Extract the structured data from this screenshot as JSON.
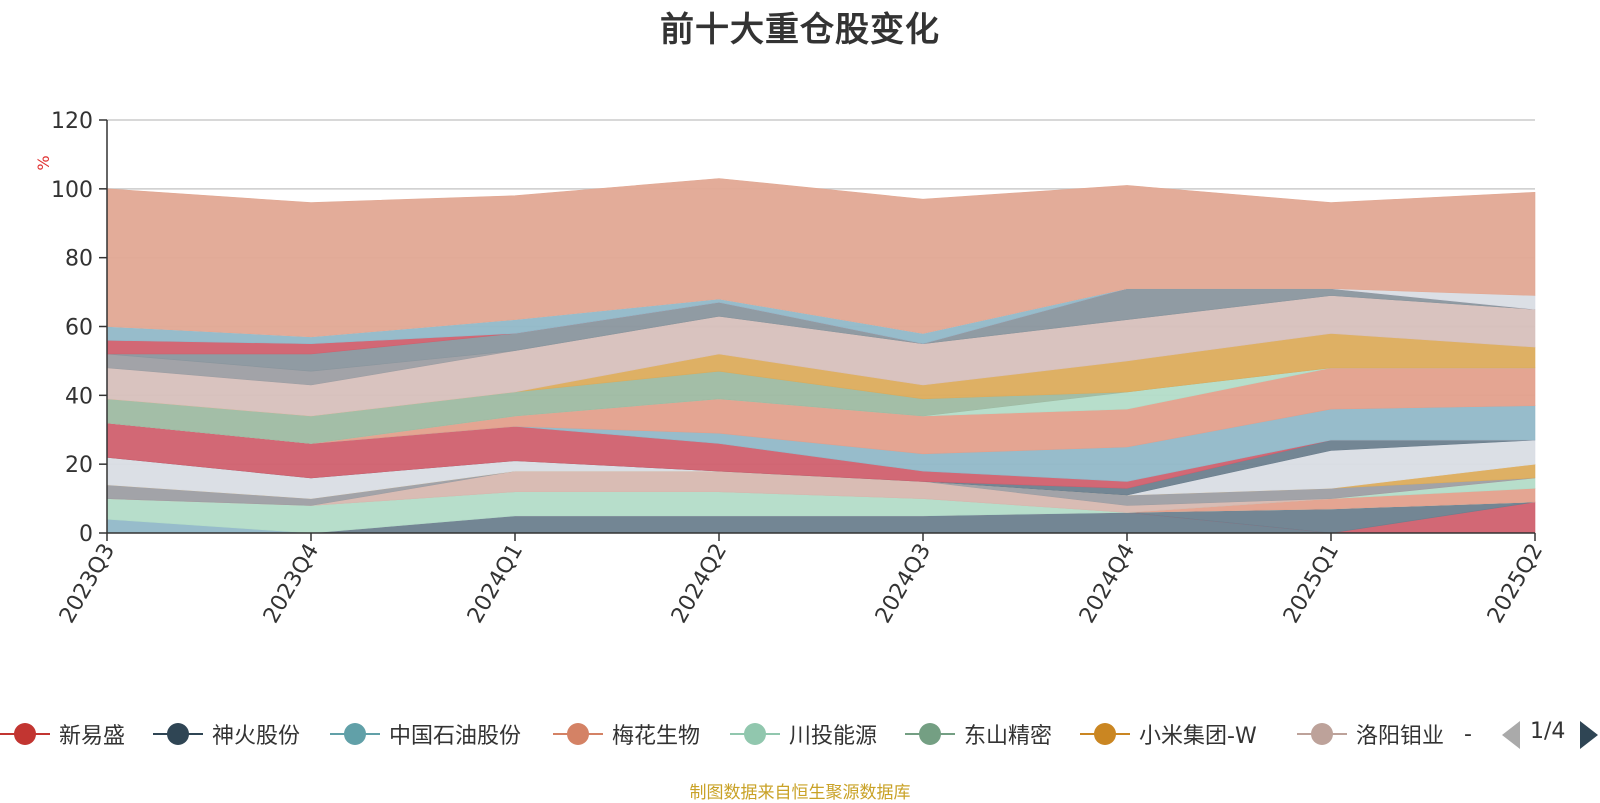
{
  "chart_data": {
    "type": "area",
    "title": "前十大重仓股变化",
    "ylabel": "%",
    "xlabel": "",
    "ylim": [
      0,
      120
    ],
    "yticks": [
      0,
      20,
      40,
      60,
      80,
      100,
      120
    ],
    "stacked": true,
    "grid": true,
    "legend_position": "bottom",
    "categories": [
      "2023Q3",
      "2023Q4",
      "2024Q1",
      "2024Q2",
      "2024Q3",
      "2024Q4",
      "2025Q1",
      "2025Q2"
    ],
    "series": [
      {
        "name": "",
        "color": "#6c7f8e",
        "values": [
          0,
          0,
          5,
          5,
          5,
          6,
          0,
          0
        ]
      },
      {
        "name": "",
        "color": "#d0606e",
        "values": [
          0,
          0,
          0,
          0,
          0,
          0,
          0,
          9
        ]
      },
      {
        "name": "",
        "color": "#6c7f8e",
        "values": [
          0,
          0,
          0,
          0,
          0,
          0,
          7,
          0
        ]
      },
      {
        "name": "",
        "color": "#91b8c8",
        "values": [
          4,
          0,
          0,
          0,
          0,
          0,
          0,
          0
        ]
      },
      {
        "name": "",
        "color": "#b3dcc8",
        "values": [
          6,
          8,
          7,
          7,
          5,
          0,
          0,
          0
        ]
      },
      {
        "name": "",
        "color": "#e3a08c",
        "values": [
          0,
          0,
          0,
          0,
          0,
          0,
          3,
          4
        ]
      },
      {
        "name": "",
        "color": "#b3dcc8",
        "values": [
          0,
          0,
          0,
          0,
          0,
          0,
          0,
          3
        ]
      },
      {
        "name": "",
        "color": "#d7b8b0",
        "values": [
          0,
          0,
          6,
          6,
          5,
          2,
          0,
          0
        ]
      },
      {
        "name": "",
        "color": "#9d9ea3",
        "values": [
          4,
          2,
          0,
          0,
          0,
          3,
          3,
          0
        ]
      },
      {
        "name": "",
        "color": "#dcac5c",
        "values": [
          0,
          0,
          0,
          0,
          0,
          0,
          0,
          4
        ]
      },
      {
        "name": "",
        "color": "#d9dde4",
        "values": [
          8,
          6,
          3,
          0,
          0,
          0,
          11,
          7
        ]
      },
      {
        "name": "",
        "color": "#6c7f8e",
        "values": [
          0,
          0,
          0,
          0,
          0,
          2,
          3,
          0
        ]
      },
      {
        "name": "",
        "color": "#d0606e",
        "values": [
          10,
          10,
          10,
          8,
          3,
          2,
          0,
          0
        ]
      },
      {
        "name": "",
        "color": "#91b8c8",
        "values": [
          0,
          0,
          0,
          3,
          5,
          10,
          9,
          10
        ]
      },
      {
        "name": "",
        "color": "#e3a08c",
        "values": [
          0,
          0,
          3,
          10,
          11,
          11,
          12,
          11
        ]
      },
      {
        "name": "",
        "color": "#b3dcc8",
        "values": [
          0,
          0,
          0,
          0,
          0,
          5,
          0,
          0
        ]
      },
      {
        "name": "",
        "color": "#9ebaa2",
        "values": [
          7,
          8,
          7,
          8,
          5,
          0,
          0,
          0
        ]
      },
      {
        "name": "",
        "color": "#dcac5c",
        "values": [
          0,
          0,
          0,
          5,
          4,
          9,
          10,
          6
        ]
      },
      {
        "name": "",
        "color": "#d7c0bc",
        "values": [
          9,
          9,
          12,
          11,
          12,
          12,
          11,
          11
        ]
      },
      {
        "name": "",
        "color": "#9d9ea3",
        "values": [
          4,
          4,
          0,
          0,
          0,
          0,
          0,
          0
        ]
      },
      {
        "name": "",
        "color": "#8a969e",
        "values": [
          0,
          5,
          5,
          4,
          0,
          9,
          2,
          0
        ]
      },
      {
        "name": "",
        "color": "#d0606e",
        "values": [
          4,
          3,
          0,
          0,
          0,
          0,
          0,
          0
        ]
      },
      {
        "name": "",
        "color": "#91b8c8",
        "values": [
          4,
          2,
          4,
          1,
          3,
          0,
          0,
          0
        ]
      },
      {
        "name": "",
        "color": "#d9dde4",
        "values": [
          0,
          0,
          0,
          0,
          0,
          0,
          0,
          4
        ]
      },
      {
        "name": "",
        "color": "#e1a893",
        "values": [
          40,
          39,
          36,
          35,
          39,
          30,
          25,
          30
        ]
      }
    ]
  },
  "legend": {
    "items": [
      {
        "label": "新易盛",
        "color": "#c23531"
      },
      {
        "label": "神火股份",
        "color": "#2f4554"
      },
      {
        "label": "中国石油股份",
        "color": "#61a0a8"
      },
      {
        "label": "梅花生物",
        "color": "#d48265"
      },
      {
        "label": "川投能源",
        "color": "#91c7ae"
      },
      {
        "label": "东山精密",
        "color": "#749f83"
      },
      {
        "label": "小米集团-W",
        "color": "#ca8622"
      },
      {
        "label": "洛阳钼业",
        "color": "#bda29a"
      },
      {
        "label": "-",
        "color": ""
      }
    ],
    "page": "1/4"
  },
  "source_note": "制图数据来自恒生聚源数据库"
}
